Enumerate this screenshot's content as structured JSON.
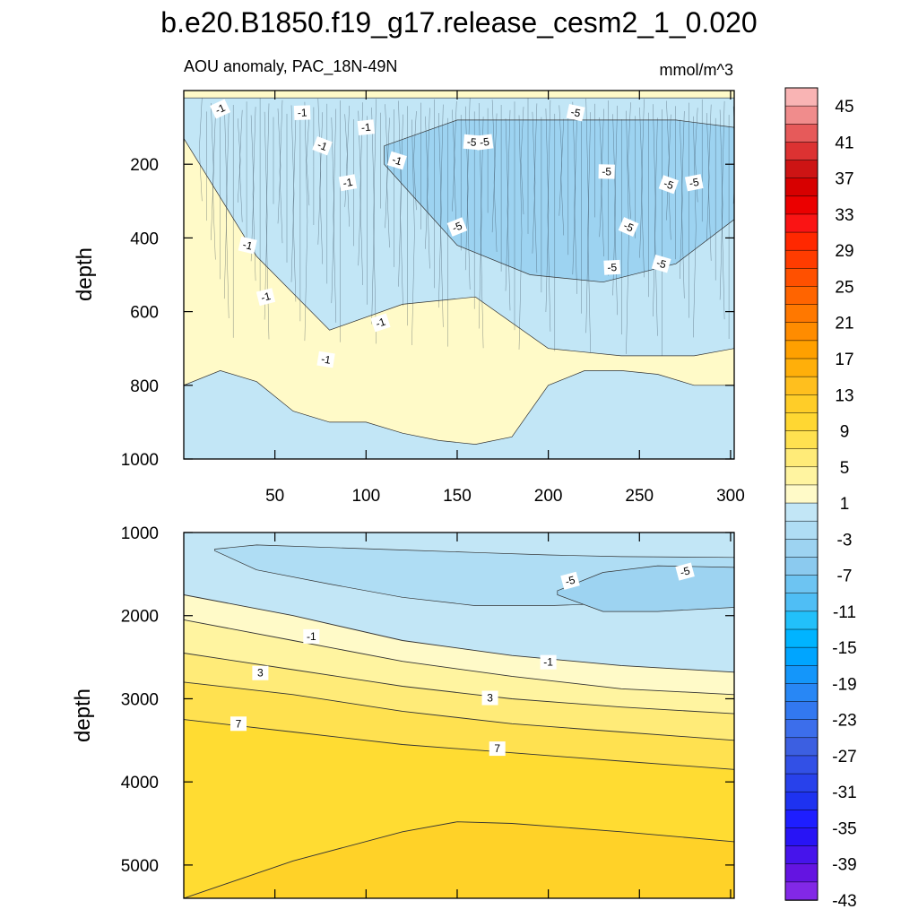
{
  "chart_data": {
    "type": "contour",
    "title": "b.e20.B1850.f19_g17.release_cesm2_1_0.020",
    "left_subtitle": "AOU anomaly, PAC_18N-49N",
    "units": "mmol/m^3",
    "panels": [
      {
        "name": "upper",
        "ylabel": "depth",
        "yrange": [
          0,
          1000
        ],
        "xrange": [
          0,
          302
        ],
        "y_ticks": [
          "200",
          "400",
          "600",
          "800",
          "1000"
        ],
        "x_ticks": [
          "50",
          "100",
          "150",
          "200",
          "250",
          "300"
        ],
        "contour_labels": [
          "-1",
          "-5"
        ],
        "bands": [
          {
            "level": "-3",
            "x": [
              0,
              40,
              80,
              120,
              160,
              200,
              240,
              280,
              302
            ],
            "top": [
              20,
              20,
              20,
              20,
              20,
              20,
              20,
              20,
              20
            ],
            "bottom": [
              130,
              450,
              650,
              580,
              560,
              700,
              720,
              720,
              700
            ]
          },
          {
            "level": "-7",
            "x": [
              110,
              150,
              190,
              230,
              270,
              302
            ],
            "top": [
              150,
              80,
              80,
              80,
              80,
              100
            ],
            "bottom": [
              200,
              420,
              500,
              520,
              470,
              350
            ]
          },
          {
            "level": "-3",
            "x": [
              0,
              20,
              40,
              60,
              80,
              100,
              120,
              140,
              160,
              180,
              200,
              220,
              240,
              260,
              280,
              302
            ],
            "top": [
              800,
              760,
              790,
              870,
              900,
              900,
              930,
              950,
              960,
              940,
              800,
              760,
              760,
              770,
              800,
              800
            ],
            "bottom": [
              1000,
              1000,
              1000,
              1000,
              1000,
              1000,
              1000,
              1000,
              1000,
              1000,
              1000,
              1000,
              1000,
              1000,
              1000,
              1000
            ]
          }
        ]
      },
      {
        "name": "lower",
        "ylabel": "depth",
        "yrange": [
          1000,
          5400
        ],
        "xrange": [
          0,
          302
        ],
        "y_ticks": [
          "1000",
          "2000",
          "3000",
          "4000",
          "5000"
        ],
        "contour_labels": [
          "-5",
          "-5",
          "-1",
          "-1",
          "3",
          "3",
          "7",
          "7"
        ],
        "contour_lines": [
          {
            "level": "-1",
            "x": [
              0,
              60,
              120,
              180,
              240,
              302
            ],
            "depth": [
              1750,
              2000,
              2300,
              2480,
              2600,
              2680
            ]
          },
          {
            "level": "1",
            "x": [
              0,
              60,
              120,
              180,
              240,
              302
            ],
            "depth": [
              2050,
              2300,
              2550,
              2730,
              2880,
              2950
            ]
          },
          {
            "level": "3",
            "x": [
              0,
              60,
              120,
              180,
              240,
              302
            ],
            "depth": [
              2450,
              2650,
              2850,
              3000,
              3100,
              3180
            ]
          },
          {
            "level": "5",
            "x": [
              0,
              60,
              120,
              180,
              240,
              302
            ],
            "depth": [
              2800,
              2950,
              3150,
              3300,
              3400,
              3500
            ]
          },
          {
            "level": "7",
            "x": [
              0,
              60,
              120,
              180,
              240,
              302
            ],
            "depth": [
              3250,
              3400,
              3550,
              3650,
              3750,
              3850
            ]
          },
          {
            "level": "9",
            "x": [
              0,
              60,
              120,
              150,
              180,
              240,
              302
            ],
            "depth": [
              5400,
              4950,
              4600,
              4480,
              4500,
              4600,
              4720
            ]
          }
        ]
      }
    ],
    "colorbar": {
      "labels": [
        "45",
        "41",
        "37",
        "33",
        "29",
        "25",
        "21",
        "17",
        "13",
        "9",
        "5",
        "1",
        "-3",
        "-7",
        "-11",
        "-15",
        "-19",
        "-23",
        "-27",
        "-31",
        "-35",
        "-39",
        "-43"
      ],
      "colors": [
        "#F9B4B4",
        "#F08C8C",
        "#E65A5A",
        "#DC3232",
        "#CD1414",
        "#D70000",
        "#EB0000",
        "#FA1414",
        "#FF2800",
        "#FF3C00",
        "#FF5000",
        "#FF6400",
        "#FF7800",
        "#FF8C00",
        "#FFA000",
        "#FFAF0A",
        "#FFBF1E",
        "#FFCD28",
        "#FFD732",
        "#FFE150",
        "#FFEB78",
        "#FFF4A0",
        "#FFFAC8",
        "#C2E6F6",
        "#AFDDF4",
        "#9DD3F1",
        "#8BCAEF",
        "#6DC4F2",
        "#4FBEF5",
        "#22C0FA",
        "#00B4FF",
        "#00A5FF",
        "#1496FA",
        "#2887F5",
        "#3278F0",
        "#3C6EEB",
        "#3C5FE1",
        "#3250E6",
        "#2841EB",
        "#1E32F0",
        "#1E1EFF",
        "#2814F5",
        "#4614EB",
        "#6414E1",
        "#8228E6"
      ]
    }
  }
}
